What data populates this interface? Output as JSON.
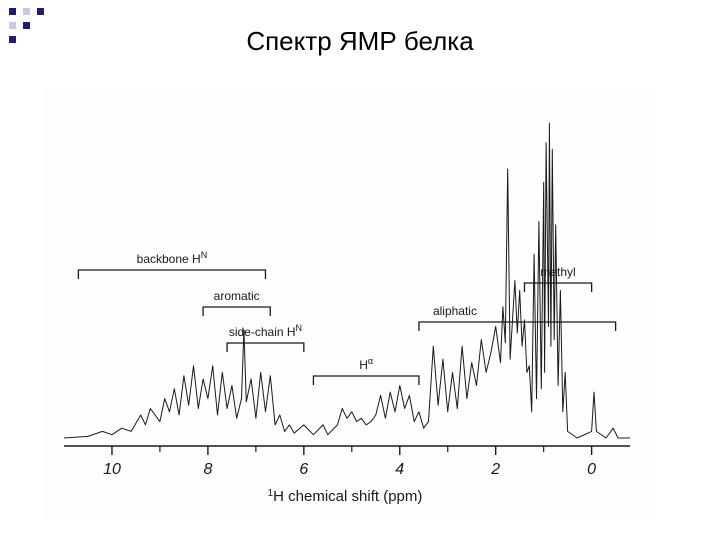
{
  "slide": {
    "title": "Спектр ЯМР белка"
  },
  "colors": {
    "decor_navy": "#1c1c7a",
    "decor_light": "#c8c8e0",
    "ink": "#1a1a1a"
  },
  "chart_data": {
    "type": "line",
    "title": "",
    "xlabel": "¹H chemical shift (ppm)",
    "ylabel": "",
    "x_reversed": true,
    "xlim": [
      11.0,
      -0.8
    ],
    "ylim": [
      0,
      1.0
    ],
    "ticks": [
      10,
      8,
      6,
      4,
      2,
      0
    ],
    "tick_labels": [
      "10",
      "8",
      "6",
      "4",
      "2",
      "0"
    ],
    "series": [
      {
        "values": [
          [
            11.0,
            0.0
          ],
          [
            10.5,
            0.005
          ],
          [
            10.2,
            0.02
          ],
          [
            10.0,
            0.01
          ],
          [
            9.8,
            0.03
          ],
          [
            9.6,
            0.02
          ],
          [
            9.4,
            0.07
          ],
          [
            9.3,
            0.04
          ],
          [
            9.2,
            0.09
          ],
          [
            9.0,
            0.05
          ],
          [
            8.9,
            0.12
          ],
          [
            8.8,
            0.08
          ],
          [
            8.7,
            0.15
          ],
          [
            8.6,
            0.07
          ],
          [
            8.5,
            0.19
          ],
          [
            8.4,
            0.1
          ],
          [
            8.3,
            0.22
          ],
          [
            8.2,
            0.09
          ],
          [
            8.1,
            0.18
          ],
          [
            8.0,
            0.12
          ],
          [
            7.9,
            0.22
          ],
          [
            7.8,
            0.07
          ],
          [
            7.7,
            0.2
          ],
          [
            7.6,
            0.09
          ],
          [
            7.5,
            0.16
          ],
          [
            7.4,
            0.06
          ],
          [
            7.3,
            0.12
          ],
          [
            7.25,
            0.33
          ],
          [
            7.2,
            0.11
          ],
          [
            7.1,
            0.18
          ],
          [
            7.0,
            0.06
          ],
          [
            6.9,
            0.2
          ],
          [
            6.8,
            0.08
          ],
          [
            6.7,
            0.19
          ],
          [
            6.6,
            0.04
          ],
          [
            6.5,
            0.07
          ],
          [
            6.4,
            0.02
          ],
          [
            6.3,
            0.04
          ],
          [
            6.2,
            0.015
          ],
          [
            6.0,
            0.04
          ],
          [
            5.8,
            0.01
          ],
          [
            5.6,
            0.04
          ],
          [
            5.5,
            0.01
          ],
          [
            5.3,
            0.04
          ],
          [
            5.2,
            0.09
          ],
          [
            5.1,
            0.06
          ],
          [
            5.0,
            0.08
          ],
          [
            4.9,
            0.05
          ],
          [
            4.8,
            0.06
          ],
          [
            4.7,
            0.04
          ],
          [
            4.6,
            0.05
          ],
          [
            4.5,
            0.07
          ],
          [
            4.4,
            0.13
          ],
          [
            4.3,
            0.06
          ],
          [
            4.2,
            0.14
          ],
          [
            4.1,
            0.08
          ],
          [
            4.0,
            0.16
          ],
          [
            3.9,
            0.09
          ],
          [
            3.8,
            0.13
          ],
          [
            3.7,
            0.05
          ],
          [
            3.6,
            0.08
          ],
          [
            3.5,
            0.03
          ],
          [
            3.4,
            0.05
          ],
          [
            3.3,
            0.28
          ],
          [
            3.2,
            0.1
          ],
          [
            3.1,
            0.24
          ],
          [
            3.0,
            0.08
          ],
          [
            2.9,
            0.2
          ],
          [
            2.8,
            0.09
          ],
          [
            2.7,
            0.28
          ],
          [
            2.6,
            0.12
          ],
          [
            2.5,
            0.23
          ],
          [
            2.4,
            0.16
          ],
          [
            2.3,
            0.3
          ],
          [
            2.2,
            0.2
          ],
          [
            2.1,
            0.26
          ],
          [
            2.0,
            0.34
          ],
          [
            1.9,
            0.23
          ],
          [
            1.85,
            0.4
          ],
          [
            1.8,
            0.29
          ],
          [
            1.75,
            0.82
          ],
          [
            1.7,
            0.24
          ],
          [
            1.6,
            0.48
          ],
          [
            1.55,
            0.32
          ],
          [
            1.5,
            0.45
          ],
          [
            1.45,
            0.28
          ],
          [
            1.4,
            0.36
          ],
          [
            1.35,
            0.2
          ],
          [
            1.3,
            0.22
          ],
          [
            1.25,
            0.08
          ],
          [
            1.2,
            0.56
          ],
          [
            1.15,
            0.12
          ],
          [
            1.1,
            0.66
          ],
          [
            1.05,
            0.15
          ],
          [
            1.0,
            0.78
          ],
          [
            0.98,
            0.2
          ],
          [
            0.95,
            0.9
          ],
          [
            0.9,
            0.34
          ],
          [
            0.88,
            0.96
          ],
          [
            0.85,
            0.28
          ],
          [
            0.82,
            0.88
          ],
          [
            0.78,
            0.3
          ],
          [
            0.75,
            0.65
          ],
          [
            0.7,
            0.16
          ],
          [
            0.65,
            0.45
          ],
          [
            0.6,
            0.08
          ],
          [
            0.55,
            0.2
          ],
          [
            0.5,
            0.02
          ],
          [
            0.3,
            0.0
          ],
          [
            0.0,
            0.02
          ],
          [
            -0.05,
            0.14
          ],
          [
            -0.1,
            0.02
          ],
          [
            -0.3,
            0.0
          ],
          [
            -0.45,
            0.03
          ],
          [
            -0.55,
            0.0
          ],
          [
            -0.8,
            0.0
          ]
        ]
      }
    ],
    "annotations": [
      {
        "label": "backbone H",
        "superscript": "N",
        "from": 10.7,
        "to": 6.8
      },
      {
        "label": "aromatic",
        "from": 8.1,
        "to": 6.7
      },
      {
        "label": "side-chain H",
        "superscript": "N",
        "from": 7.6,
        "to": 6.0
      },
      {
        "label": "H",
        "superscript": "α",
        "from": 5.8,
        "to": 3.6
      },
      {
        "label": "aliphatic",
        "from": 3.6,
        "to": -0.5
      },
      {
        "label": "methyl",
        "from": 1.4,
        "to": 0.0
      }
    ],
    "grid": false,
    "legend": "none"
  }
}
